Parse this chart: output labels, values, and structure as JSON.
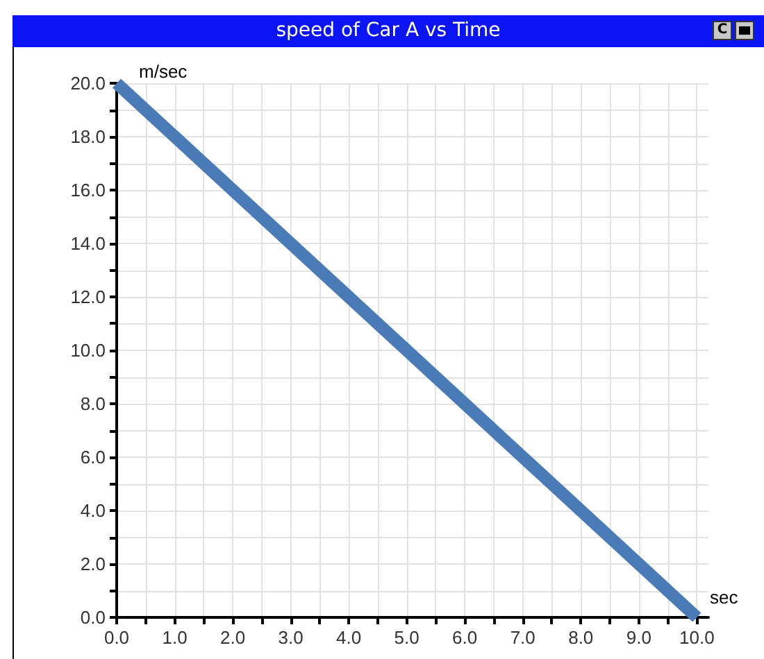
{
  "chart_data": {
    "type": "line",
    "title": "speed of Car A vs Time",
    "xlabel": "sec",
    "ylabel": "m/sec",
    "annotations": [
      "C"
    ],
    "x": [
      0,
      10
    ],
    "series": [
      {
        "color": "#4a7bb7",
        "values": [
          20,
          0
        ]
      }
    ],
    "xlim": [
      0,
      10.2
    ],
    "ylim": [
      0,
      20
    ],
    "xticks": [
      {
        "value": 0,
        "label": "0.0"
      },
      {
        "value": 0.5,
        "label": null
      },
      {
        "value": 1,
        "label": "1.0"
      },
      {
        "value": 1.5,
        "label": null
      },
      {
        "value": 2,
        "label": "2.0"
      },
      {
        "value": 2.5,
        "label": null
      },
      {
        "value": 3,
        "label": "3.0"
      },
      {
        "value": 3.5,
        "label": null
      },
      {
        "value": 4,
        "label": "4.0"
      },
      {
        "value": 4.5,
        "label": null
      },
      {
        "value": 5,
        "label": "5.0"
      },
      {
        "value": 5.5,
        "label": null
      },
      {
        "value": 6,
        "label": "6.0"
      },
      {
        "value": 6.5,
        "label": null
      },
      {
        "value": 7,
        "label": "7.0"
      },
      {
        "value": 7.5,
        "label": null
      },
      {
        "value": 8,
        "label": "8.0"
      },
      {
        "value": 8.5,
        "label": null
      },
      {
        "value": 9,
        "label": "9.0"
      },
      {
        "value": 9.5,
        "label": null
      },
      {
        "value": 10,
        "label": "10.0"
      }
    ],
    "yticks": [
      {
        "value": 0,
        "label": "0.0"
      },
      {
        "value": 1,
        "label": null
      },
      {
        "value": 2,
        "label": "2.0"
      },
      {
        "value": 3,
        "label": null
      },
      {
        "value": 4,
        "label": "4.0"
      },
      {
        "value": 5,
        "label": null
      },
      {
        "value": 6,
        "label": "6.0"
      },
      {
        "value": 7,
        "label": null
      },
      {
        "value": 8,
        "label": "8.0"
      },
      {
        "value": 9,
        "label": null
      },
      {
        "value": 10,
        "label": "10.0"
      },
      {
        "value": 11,
        "label": null
      },
      {
        "value": 12,
        "label": "12.0"
      },
      {
        "value": 13,
        "label": null
      },
      {
        "value": 14,
        "label": "14.0"
      },
      {
        "value": 15,
        "label": null
      },
      {
        "value": 16,
        "label": "16.0"
      },
      {
        "value": 17,
        "label": null
      },
      {
        "value": 18,
        "label": "18.0"
      },
      {
        "value": 19,
        "label": null
      },
      {
        "value": 20,
        "label": "20.0"
      }
    ],
    "grid": true,
    "marker": "none",
    "line_style": "solid"
  }
}
